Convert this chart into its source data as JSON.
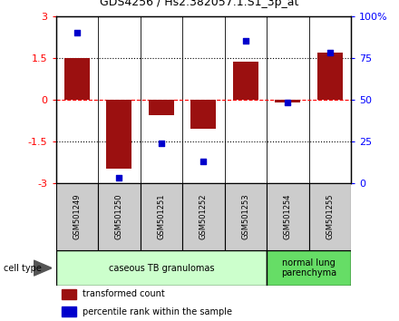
{
  "title": "GDS4256 / Hs2.382057.1.S1_3p_at",
  "samples": [
    "GSM501249",
    "GSM501250",
    "GSM501251",
    "GSM501252",
    "GSM501253",
    "GSM501254",
    "GSM501255"
  ],
  "transformed_count": [
    1.5,
    -2.5,
    -0.55,
    -1.05,
    1.35,
    -0.1,
    1.7
  ],
  "percentile_rank": [
    90,
    3,
    24,
    13,
    85,
    48,
    78
  ],
  "ylim_left": [
    -3,
    3
  ],
  "ylim_right": [
    0,
    100
  ],
  "bar_color": "#9B1010",
  "dot_color": "#0000CC",
  "groups": [
    {
      "label": "caseous TB granulomas",
      "n_samples": 5,
      "color": "#CCFFCC"
    },
    {
      "label": "normal lung\nparenchyma",
      "n_samples": 2,
      "color": "#66DD66"
    }
  ],
  "cell_type_label": "cell type",
  "legend_bar_label": "transformed count",
  "legend_dot_label": "percentile rank within the sample",
  "yticks_left": [
    -3,
    -1.5,
    0,
    1.5,
    3
  ],
  "ytick_labels_right": [
    "0",
    "25",
    "50",
    "75",
    "100%"
  ],
  "hlines": [
    -1.5,
    0,
    1.5
  ],
  "hline_styles": [
    "dotted",
    "dashed",
    "dotted"
  ],
  "hline_colors": [
    "black",
    "red",
    "black"
  ],
  "sample_box_color": "#CCCCCC",
  "xlabel_fontsize": 6,
  "title_fontsize": 9
}
